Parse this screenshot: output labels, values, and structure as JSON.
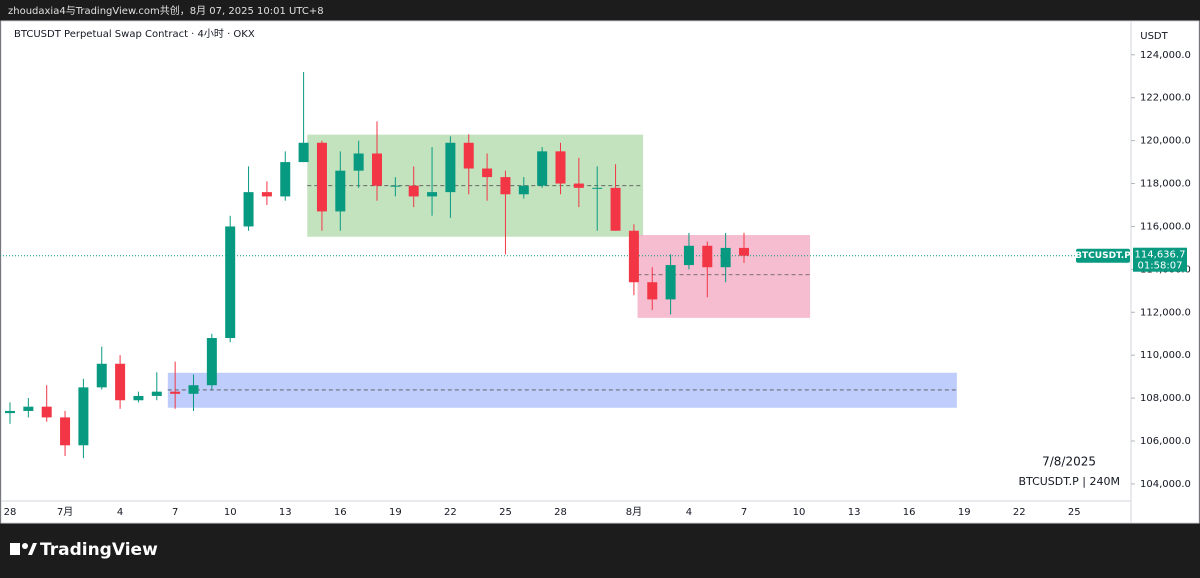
{
  "header": "zhoudaxia4与TradingView.com共创，8月 07, 2025 10:01 UTC+8",
  "footer": "TradingView",
  "chart_data": {
    "type": "candlestick",
    "title": "BTCUSDT Perpetual Swap Contract · 4小时 · OKX",
    "y_unit": "USDT",
    "categories": [
      "28",
      null,
      null,
      "7月",
      null,
      null,
      "4",
      null,
      null,
      "7",
      null,
      null,
      "10",
      null,
      null,
      "13",
      null,
      null,
      "16",
      null,
      null,
      "19",
      null,
      null,
      "22",
      null,
      null,
      "25",
      null,
      null,
      "28",
      null,
      null,
      null,
      "8月",
      null,
      null,
      "4",
      null,
      null,
      "7",
      null,
      null,
      "10",
      null,
      null,
      "13",
      null,
      null,
      "16",
      null,
      null,
      "19",
      null,
      null,
      "22",
      null,
      null,
      "25"
    ],
    "open": [
      107300,
      107400,
      107600,
      107100,
      105800,
      108500,
      109600,
      107900,
      108100,
      108300,
      108200,
      108600,
      110800,
      116000,
      117600,
      117400,
      119000,
      119900,
      116700,
      118600,
      119400,
      117900,
      117900,
      117400,
      117600,
      119900,
      118700,
      118300,
      117500,
      117900,
      119500,
      118000,
      117800,
      117800,
      115800,
      113400,
      112600,
      114200,
      115100,
      114100,
      115000,
      null,
      null,
      null,
      null,
      null,
      null,
      null,
      null,
      null,
      null,
      null,
      null,
      null,
      null,
      null,
      null,
      null,
      null
    ],
    "high": [
      107800,
      108000,
      108600,
      107400,
      108900,
      110400,
      110000,
      108300,
      109200,
      109700,
      109100,
      111000,
      116500,
      118800,
      118100,
      119500,
      123200,
      120000,
      119500,
      120000,
      120900,
      118300,
      118800,
      119700,
      120200,
      120300,
      119400,
      118600,
      118300,
      119700,
      119900,
      119200,
      118800,
      118900,
      116100,
      114100,
      114700,
      115700,
      115300,
      115700,
      115700,
      null,
      null,
      null,
      null,
      null,
      null,
      null,
      null,
      null,
      null,
      null,
      null,
      null,
      null,
      null,
      null,
      null,
      null
    ],
    "low": [
      106800,
      107100,
      106900,
      105300,
      105200,
      108400,
      107500,
      107800,
      107900,
      107500,
      107400,
      108400,
      110600,
      115800,
      117000,
      117200,
      119000,
      115800,
      115800,
      117800,
      117200,
      117400,
      116900,
      116500,
      116400,
      117500,
      117200,
      114700,
      117300,
      117800,
      117500,
      116900,
      115800,
      115800,
      112800,
      112100,
      111900,
      114000,
      112700,
      113400,
      114300,
      null,
      null,
      null,
      null,
      null,
      null,
      null,
      null,
      null,
      null,
      null,
      null,
      null,
      null,
      null,
      null,
      null,
      null
    ],
    "close": [
      107400,
      107600,
      107100,
      105800,
      108500,
      109600,
      107900,
      108100,
      108300,
      108200,
      108600,
      110800,
      116000,
      117600,
      117400,
      119000,
      119900,
      116700,
      118600,
      119400,
      117900,
      117900,
      117400,
      117600,
      119900,
      118700,
      118300,
      117500,
      117900,
      119500,
      118000,
      117800,
      117800,
      115800,
      113400,
      112600,
      114200,
      115100,
      114100,
      115000,
      114636.7,
      null,
      null,
      null,
      null,
      null,
      null,
      null,
      null,
      null,
      null,
      null,
      null,
      null,
      null,
      null,
      null,
      null,
      null
    ],
    "up_color": "#089981",
    "down_color": "#f23645",
    "ylim": [
      103250,
      125250
    ],
    "yticks": [
      {
        "value": 104000,
        "label": "104,000.0"
      },
      {
        "value": 106000,
        "label": "106,000.0"
      },
      {
        "value": 108000,
        "label": "108,000.0"
      },
      {
        "value": 110000,
        "label": "110,000.0"
      },
      {
        "value": 112000,
        "label": "112,000.0"
      },
      {
        "value": 114000,
        "label": "114,000.0"
      },
      {
        "value": 116000,
        "label": "116,000.0"
      },
      {
        "value": 118000,
        "label": "118,000.0"
      },
      {
        "value": 120000,
        "label": "120,000.0"
      },
      {
        "value": 122000,
        "label": "122,000.0"
      },
      {
        "value": 124000,
        "label": "124,000.0"
      }
    ],
    "zones": [
      {
        "low": 115520,
        "high": 120280,
        "mid": 117900,
        "color": "#b9deb4"
      },
      {
        "low": 111740,
        "high": 115600,
        "mid": 113750,
        "color": "#f5b0c8"
      },
      {
        "low": 107550,
        "high": 109180,
        "mid": 108380,
        "color": "#b3c4fb"
      }
    ],
    "last_price": {
      "value": 114636.7,
      "label": "114,636.7"
    },
    "countdown": "01:58:07",
    "symbol_tag": "BTCUSDT.P",
    "watermark_date": "7/8/2025",
    "watermark_symbol": "BTCUSDT.P | 240M"
  }
}
